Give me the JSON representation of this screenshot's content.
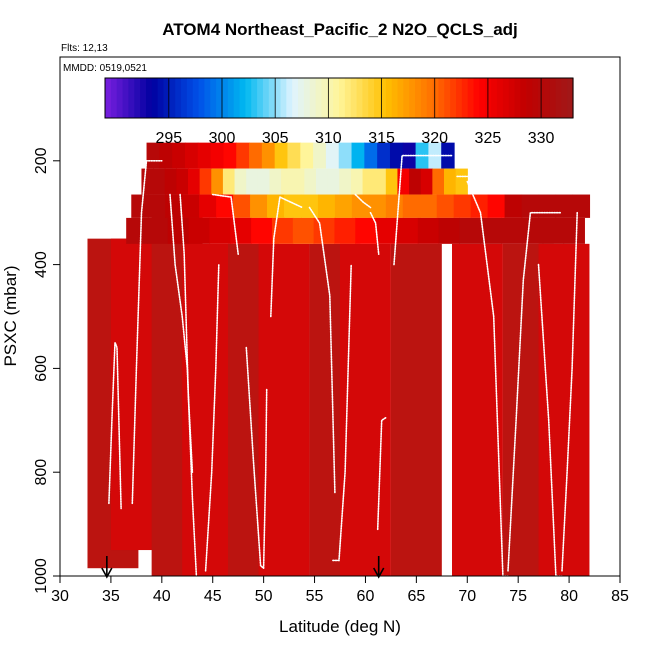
{
  "chart_data": {
    "type": "heatmap",
    "title": "ATOM4 Northeast_Pacific_2 N2O_QCLS_adj",
    "flights_text": "Flts: 12,13",
    "dates_text": "MMDD: 0519,0521",
    "xlabel": "Latitude (deg N)",
    "ylabel": "PSXC (mbar)",
    "xlim": [
      30,
      85
    ],
    "ylim": [
      1000,
      0
    ],
    "x_ticks": [
      "30",
      "35",
      "40",
      "45",
      "50",
      "55",
      "60",
      "65",
      "70",
      "75",
      "80",
      "85"
    ],
    "y_ticks": [
      "200",
      "400",
      "600",
      "800",
      "1000"
    ],
    "colorbar": {
      "range": [
        289,
        333
      ],
      "tick_labels": [
        "295",
        "300",
        "305",
        "310",
        "315",
        "320",
        "325",
        "330"
      ],
      "colors": [
        "#7a1fe0",
        "#0000a0",
        "#0050e8",
        "#00b8f0",
        "#dff4ff",
        "#fff59a",
        "#ffc000",
        "#ff7000",
        "#ff0000",
        "#c00000",
        "#a01818"
      ]
    },
    "bands": [
      {
        "p_top": 165,
        "p_bottom": 215,
        "x_start": 38.5,
        "x_end": 68.7,
        "values": [
          330,
          329,
          328,
          327,
          326,
          325,
          324,
          322,
          320,
          318,
          315,
          313,
          311,
          309,
          307,
          305,
          302,
          299,
          296,
          294,
          293,
          303,
          306,
          294
        ]
      },
      {
        "p_top": 215,
        "p_bottom": 265,
        "x_start": 38,
        "x_end": 70,
        "values": [
          330,
          330,
          329,
          328,
          326,
          322,
          318,
          312,
          309,
          308,
          308,
          309,
          310,
          310,
          309,
          308,
          308,
          309,
          310,
          312,
          312,
          315,
          325,
          329,
          327,
          320,
          316,
          315
        ]
      },
      {
        "p_top": 265,
        "p_bottom": 310,
        "x_start": 37,
        "x_end": 82,
        "values": [
          330,
          330,
          329,
          328,
          326,
          324,
          321,
          318,
          316,
          315,
          315,
          316,
          317,
          318,
          318,
          319,
          320,
          320,
          321,
          322,
          323,
          324,
          329,
          330,
          330,
          330,
          330
        ]
      },
      {
        "p_top": 310,
        "p_bottom": 360,
        "x_start": 36.5,
        "x_end": 81.5,
        "values": [
          330,
          330,
          329,
          328,
          327,
          326,
          324,
          322,
          321,
          322,
          323,
          324,
          326,
          327,
          328,
          329,
          330,
          330,
          330,
          330,
          330,
          330
        ]
      }
    ],
    "flight_columns": [
      {
        "x": 35.2,
        "p_top": 350,
        "p_bottom": 985
      },
      {
        "x": 37.5,
        "p_top": 350,
        "p_bottom": 950
      },
      {
        "x": 41.5,
        "p_top": 300,
        "p_bottom": 1000
      },
      {
        "x": 44.5,
        "p_top": 360,
        "p_bottom": 1000
      },
      {
        "x": 49,
        "p_top": 360,
        "p_bottom": 1000
      },
      {
        "x": 52,
        "p_top": 360,
        "p_bottom": 1000
      },
      {
        "x": 57,
        "p_top": 360,
        "p_bottom": 1000
      },
      {
        "x": 60,
        "p_top": 360,
        "p_bottom": 1000
      },
      {
        "x": 65,
        "p_top": 360,
        "p_bottom": 1000
      },
      {
        "x": 71,
        "p_top": 360,
        "p_bottom": 1000
      },
      {
        "x": 76,
        "p_top": 360,
        "p_bottom": 1000
      },
      {
        "x": 79.5,
        "p_top": 360,
        "p_bottom": 1000
      }
    ],
    "flight_tracks": [
      {
        "name": "profile",
        "points": [
          [
            34.8,
            860
          ],
          [
            35.1,
            700
          ],
          [
            35.4,
            550
          ],
          [
            35.6,
            560
          ],
          [
            36.0,
            870
          ]
        ]
      },
      {
        "name": "profile",
        "points": [
          [
            37.1,
            860
          ],
          [
            37.5,
            600
          ],
          [
            38.0,
            300
          ],
          [
            38.5,
            200
          ],
          [
            40.0,
            200
          ]
        ]
      },
      {
        "name": "profile",
        "points": [
          [
            40.8,
            265
          ],
          [
            41.3,
            400
          ],
          [
            42.0,
            500
          ],
          [
            42.5,
            600
          ],
          [
            43.0,
            850
          ],
          [
            43.4,
            1000
          ]
        ]
      },
      {
        "name": "profile",
        "points": [
          [
            41.8,
            265
          ],
          [
            42.2,
            380
          ],
          [
            42.6,
            650
          ],
          [
            43.0,
            800
          ]
        ]
      },
      {
        "name": "profile",
        "points": [
          [
            44.3,
            990
          ],
          [
            44.9,
            800
          ],
          [
            45.3,
            600
          ],
          [
            45.6,
            400
          ]
        ]
      },
      {
        "name": "profile",
        "points": [
          [
            45.0,
            265
          ],
          [
            46.8,
            270
          ],
          [
            47.5,
            380
          ]
        ]
      },
      {
        "name": "profile",
        "points": [
          [
            48.3,
            560
          ],
          [
            49.0,
            780
          ],
          [
            49.7,
            980
          ],
          [
            50.0,
            985
          ]
        ]
      },
      {
        "name": "profile",
        "points": [
          [
            50.0,
            985
          ],
          [
            50.2,
            800
          ],
          [
            50.3,
            640
          ]
        ]
      },
      {
        "name": "profile",
        "points": [
          [
            50.7,
            500
          ],
          [
            51.0,
            350
          ],
          [
            51.6,
            270
          ],
          [
            53.8,
            290
          ]
        ]
      },
      {
        "name": "profile",
        "points": [
          [
            54.5,
            290
          ],
          [
            55.5,
            320
          ],
          [
            56.5,
            460
          ],
          [
            57.0,
            840
          ]
        ]
      },
      {
        "name": "profile",
        "points": [
          [
            56.8,
            970
          ],
          [
            57.4,
            970
          ],
          [
            58.0,
            800
          ],
          [
            58.6,
            400
          ]
        ]
      },
      {
        "name": "profile",
        "points": [
          [
            59.0,
            265
          ],
          [
            59.8,
            280
          ],
          [
            60.5,
            290
          ]
        ]
      },
      {
        "name": "profile",
        "points": [
          [
            60.5,
            300
          ],
          [
            61.0,
            320
          ],
          [
            61.3,
            380
          ]
        ]
      },
      {
        "name": "profile",
        "points": [
          [
            61.2,
            910
          ],
          [
            61.6,
            700
          ],
          [
            62.0,
            695
          ]
        ]
      },
      {
        "name": "profile",
        "points": [
          [
            62.8,
            400
          ],
          [
            63.6,
            190
          ],
          [
            66.0,
            190
          ],
          [
            68.5,
            190
          ]
        ]
      },
      {
        "name": "profile",
        "points": [
          [
            69.0,
            230
          ],
          [
            70.0,
            230
          ]
        ]
      },
      {
        "name": "profile",
        "points": [
          [
            70.0,
            240
          ],
          [
            71.3,
            300
          ],
          [
            72.6,
            500
          ],
          [
            73.5,
            1000
          ],
          [
            74.0,
            1000
          ]
        ]
      },
      {
        "name": "profile",
        "points": [
          [
            74.0,
            990
          ],
          [
            74.8,
            700
          ],
          [
            75.5,
            430
          ],
          [
            76.2,
            300
          ],
          [
            77.5,
            300
          ],
          [
            79.2,
            300
          ]
        ]
      },
      {
        "name": "profile",
        "points": [
          [
            77.0,
            400
          ],
          [
            78.0,
            700
          ],
          [
            78.7,
            1000
          ],
          [
            79.3,
            1000
          ]
        ]
      },
      {
        "name": "profile",
        "points": [
          [
            79.3,
            990
          ],
          [
            79.8,
            800
          ],
          [
            80.3,
            600
          ],
          [
            80.8,
            300
          ]
        ]
      }
    ],
    "arrows": [
      {
        "x": 34.6
      },
      {
        "x": 61.3
      }
    ]
  }
}
